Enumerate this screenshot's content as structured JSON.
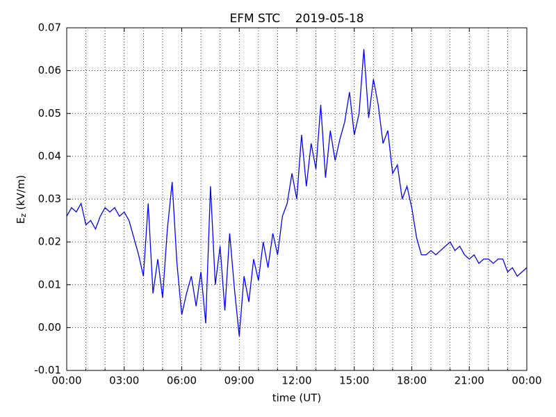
{
  "chart_data": {
    "type": "line",
    "title": "EFM STC    2019-05-18",
    "xlabel": "time (UT)",
    "ylabel": [
      "E",
      "z",
      " (kV/m)"
    ],
    "x": [
      0,
      0.25,
      0.5,
      0.75,
      1,
      1.25,
      1.5,
      1.75,
      2,
      2.25,
      2.5,
      2.75,
      3,
      3.25,
      3.5,
      3.75,
      4,
      4.25,
      4.5,
      4.75,
      5,
      5.25,
      5.5,
      5.75,
      6,
      6.25,
      6.5,
      6.75,
      7,
      7.25,
      7.5,
      7.75,
      8,
      8.25,
      8.5,
      8.75,
      9,
      9.25,
      9.5,
      9.75,
      10,
      10.25,
      10.5,
      10.75,
      11,
      11.25,
      11.5,
      11.75,
      12,
      12.25,
      12.5,
      12.75,
      13,
      13.25,
      13.5,
      13.75,
      14,
      14.25,
      14.5,
      14.75,
      15,
      15.25,
      15.5,
      15.75,
      16,
      16.25,
      16.5,
      16.75,
      17,
      17.25,
      17.5,
      17.75,
      18,
      18.25,
      18.5,
      18.75,
      19,
      19.25,
      19.5,
      19.75,
      20,
      20.25,
      20.5,
      20.75,
      21,
      21.25,
      21.5,
      21.75,
      22,
      22.25,
      22.5,
      22.75,
      23,
      23.25,
      23.5,
      23.75,
      24
    ],
    "series": [
      {
        "name": "Ez",
        "color": "#0000ff",
        "values": [
          0.026,
          0.028,
          0.027,
          0.029,
          0.024,
          0.025,
          0.023,
          0.026,
          0.028,
          0.027,
          0.028,
          0.026,
          0.027,
          0.025,
          0.021,
          0.017,
          0.012,
          0.029,
          0.008,
          0.016,
          0.007,
          0.023,
          0.034,
          0.015,
          0.003,
          0.008,
          0.012,
          0.005,
          0.013,
          0.001,
          0.033,
          0.01,
          0.019,
          0.004,
          0.022,
          0.009,
          -0.002,
          0.012,
          0.006,
          0.016,
          0.011,
          0.02,
          0.014,
          0.022,
          0.017,
          0.026,
          0.029,
          0.036,
          0.03,
          0.045,
          0.033,
          0.043,
          0.037,
          0.052,
          0.035,
          0.046,
          0.039,
          0.044,
          0.048,
          0.055,
          0.045,
          0.05,
          0.065,
          0.049,
          0.058,
          0.052,
          0.043,
          0.046,
          0.036,
          0.038,
          0.03,
          0.033,
          0.028,
          0.021,
          0.017,
          0.017,
          0.018,
          0.017,
          0.018,
          0.019,
          0.02,
          0.018,
          0.019,
          0.017,
          0.016,
          0.017,
          0.015,
          0.016,
          0.016,
          0.015,
          0.016,
          0.016,
          0.013,
          0.014,
          0.012,
          0.013,
          0.014
        ]
      }
    ],
    "xlim": [
      0,
      24
    ],
    "xticks": [
      {
        "value": 0,
        "label": "00:00"
      },
      {
        "value": 3,
        "label": "03:00"
      },
      {
        "value": 6,
        "label": "06:00"
      },
      {
        "value": 9,
        "label": "09:00"
      },
      {
        "value": 12,
        "label": "12:00"
      },
      {
        "value": 15,
        "label": "15:00"
      },
      {
        "value": 18,
        "label": "18:00"
      },
      {
        "value": 21,
        "label": "21:00"
      },
      {
        "value": 24,
        "label": "00:00"
      }
    ],
    "xminorticks": [
      1,
      2,
      4,
      5,
      7,
      8,
      10,
      11,
      13,
      14,
      16,
      17,
      19,
      20,
      22,
      23
    ],
    "ylim": [
      -0.01,
      0.07
    ],
    "yticks": [
      -0.01,
      {
        "value": 0,
        "label": "0.00"
      },
      0.01,
      0.02,
      0.03,
      0.04,
      0.05,
      0.06,
      0.07
    ],
    "grid": true
  }
}
